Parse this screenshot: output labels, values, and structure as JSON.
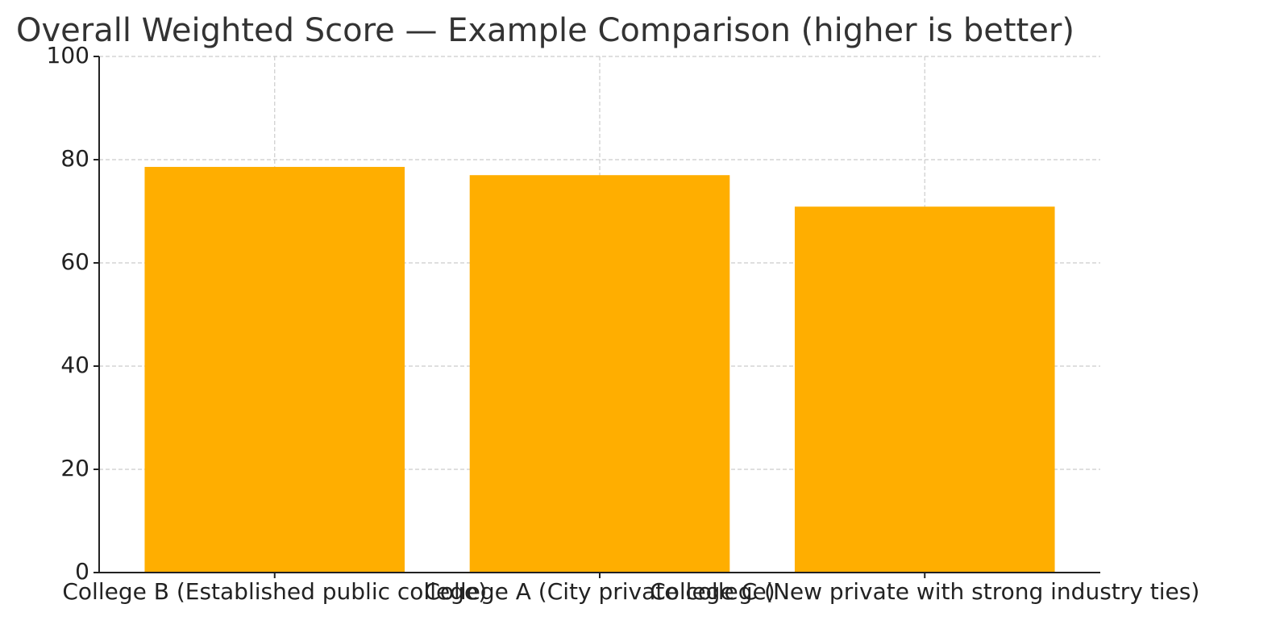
{
  "chart_data": {
    "type": "bar",
    "title": "Overall Weighted Score — Example Comparison (higher is better)",
    "categories": [
      "College B (Established public college)",
      "College A (City private college)",
      "College C (New private with strong industry ties)"
    ],
    "values": [
      78.6,
      77.0,
      70.9
    ],
    "color": "#ffae00",
    "ylim": [
      0,
      100
    ],
    "yticks": [
      0,
      20,
      40,
      60,
      80,
      100
    ],
    "grid": true
  }
}
